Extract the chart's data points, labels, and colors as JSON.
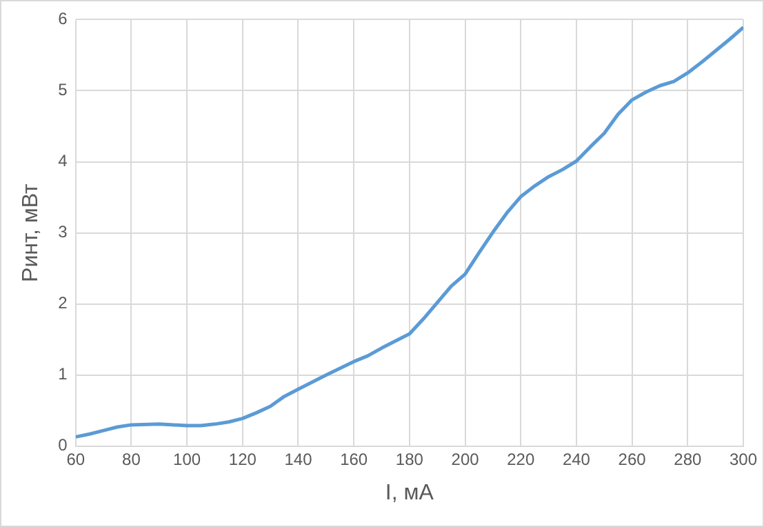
{
  "chart_data": {
    "type": "line",
    "xlabel": "I, мА",
    "ylabel": "Pинт, мВт",
    "x": [
      60,
      65,
      70,
      75,
      80,
      90,
      100,
      105,
      110,
      115,
      120,
      125,
      130,
      135,
      140,
      150,
      160,
      165,
      170,
      180,
      185,
      190,
      195,
      200,
      205,
      210,
      215,
      220,
      225,
      230,
      235,
      240,
      245,
      250,
      255,
      260,
      265,
      270,
      275,
      280,
      285,
      290,
      295,
      300
    ],
    "series": [
      {
        "color": "#5b9bd5",
        "values": [
          0.13,
          0.17,
          0.22,
          0.27,
          0.3,
          0.31,
          0.29,
          0.29,
          0.31,
          0.34,
          0.39,
          0.47,
          0.56,
          0.7,
          0.8,
          1.0,
          1.19,
          1.27,
          1.38,
          1.58,
          1.79,
          2.02,
          2.25,
          2.42,
          2.72,
          3.01,
          3.28,
          3.51,
          3.66,
          3.79,
          3.89,
          4.01,
          4.21,
          4.4,
          4.67,
          4.87,
          4.98,
          5.07,
          5.13,
          5.25,
          5.4,
          5.56,
          5.72,
          5.89
        ]
      }
    ],
    "xlim": [
      60,
      300
    ],
    "xticks": [
      60,
      80,
      100,
      120,
      140,
      160,
      180,
      200,
      220,
      240,
      260,
      280,
      300
    ],
    "ylim": [
      0,
      6
    ],
    "yticks": [
      0,
      1,
      2,
      3,
      4,
      5,
      6
    ],
    "grid": true,
    "legend": false,
    "marker": "none",
    "line_style": "solid"
  }
}
